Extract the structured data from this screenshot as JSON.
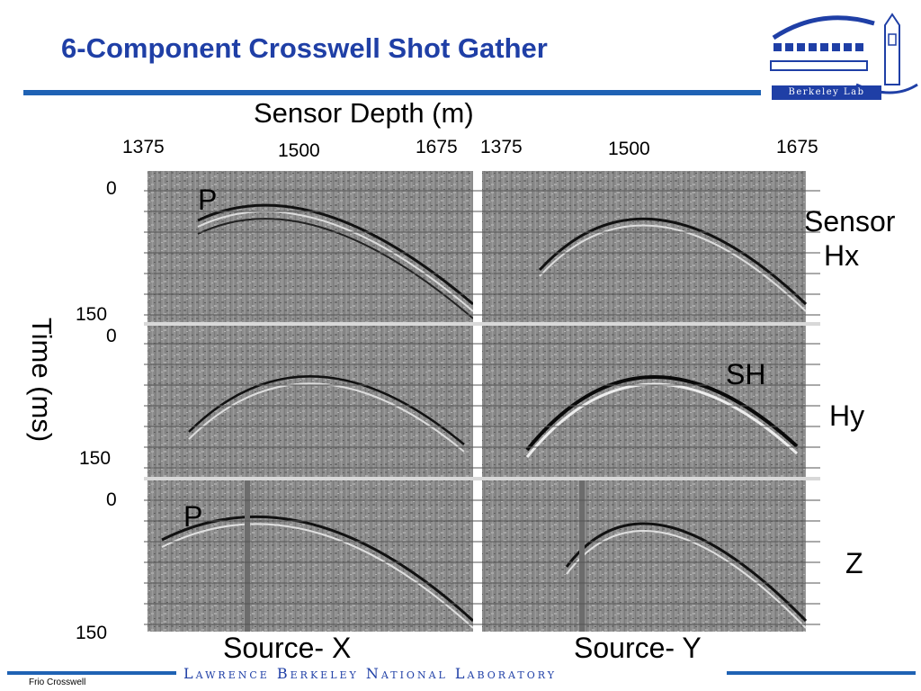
{
  "slide": {
    "title": "6-Component Crosswell Shot Gather",
    "x_axis_title": "Sensor Depth (m)",
    "y_axis_title": "Time (ms)",
    "depth_ticks_left": [
      "1375",
      "1500",
      "1675"
    ],
    "depth_ticks_right": [
      "1375",
      "1500",
      "1675"
    ],
    "time_ticks": [
      "0",
      "150",
      "0",
      "150",
      "0",
      "150"
    ],
    "row_labels": [
      "Sensor",
      "Hx",
      "Hy",
      "Z"
    ],
    "wave_labels": [
      "P",
      "SH",
      "P"
    ],
    "column_labels": [
      "Source- X",
      "Source- Y"
    ],
    "logo_text": "Berkeley Lab",
    "footer_lab": "Lawrence Berkeley National Laboratory",
    "footer_note": "Frio Crosswell"
  },
  "colors": {
    "title": "#1f3fa6",
    "rule": "#1f62b4",
    "panel_gray": "#8a8a8a"
  }
}
